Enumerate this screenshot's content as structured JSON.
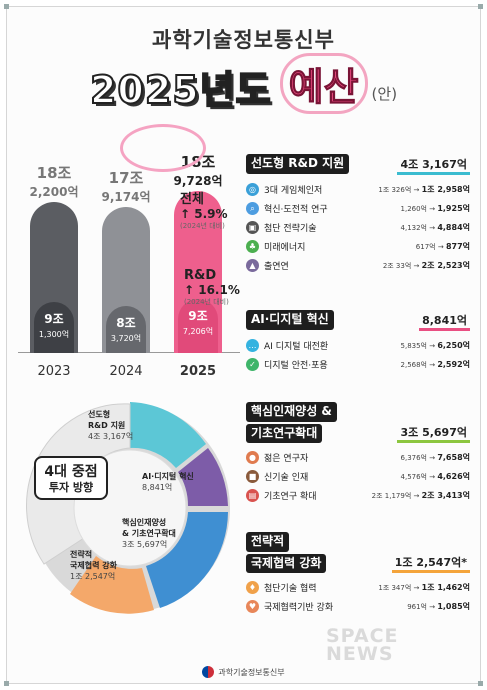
{
  "header": {
    "ministry": "과학기술정보통신부",
    "year_title": "2025년도",
    "budget": "예산",
    "draft": "(안)"
  },
  "chart_data": {
    "type": "bar",
    "categories": [
      "2023",
      "2024",
      "2025"
    ],
    "series": [
      {
        "values": [
          18.22,
          17.9174,
          18.9728
        ]
      },
      {
        "values": [
          9.13,
          8.372,
          9.7206
        ]
      }
    ],
    "ylim": [
      0,
      20
    ],
    "top_labels": [
      {
        "a": "18조",
        "b": "2,200억"
      },
      {
        "a": "17조",
        "b": "9,174억"
      },
      {
        "a": "18조",
        "b": "9,728억"
      }
    ],
    "inner_labels": [
      {
        "a": "9조",
        "b": "1,300억"
      },
      {
        "a": "8조",
        "b": "3,720억"
      },
      {
        "a": "9조",
        "b": "7,206억"
      }
    ],
    "colors": [
      "#5b5d62",
      "#8f9196",
      "#ee5f8d"
    ],
    "inner_colors": [
      "#3e4045",
      "#66686d",
      "#e14a7a"
    ]
  },
  "growth": {
    "total_label": "전체",
    "total_value": "5.9%",
    "total_cmp": "(2024년 대비)",
    "rd_label": "R&D",
    "rd_value": "16.1%",
    "rd_cmp": "(2024년 대비)"
  },
  "donut": {
    "center_line1": "4대 중점",
    "center_line2": "투자 방향",
    "segments": [
      {
        "name1": "선도형",
        "name2": "R&D 지원",
        "amount": "4조 3,167억",
        "color": "#5cc7d6"
      },
      {
        "name1": "AI·디지털 혁신",
        "name2": "",
        "amount": "8,841억",
        "color": "#7d5ca8"
      },
      {
        "name1": "핵심인재양성",
        "name2": "& 기초연구확대",
        "amount": "3조 5,697억",
        "color": "#3f8fd2"
      },
      {
        "name1": "전략적",
        "name2": "국제협력 강화",
        "amount": "1조 2,547억",
        "color": "#f4a86a"
      }
    ]
  },
  "sections": [
    {
      "title1": "선도형 R&D 지원",
      "title2": "",
      "total": "4조 3,167억",
      "items": [
        {
          "icon": "orbit-icon",
          "color": "#3aa0d8",
          "glyph": "◎",
          "name": "3대 게임체인저",
          "from": "1조 326억",
          "to": "1조 2,958억"
        },
        {
          "icon": "search-icon",
          "color": "#4d9de0",
          "glyph": "⌕",
          "name": "혁신·도전적 연구",
          "from": "1,260억",
          "to": "1,925억"
        },
        {
          "icon": "chip-icon",
          "color": "#555",
          "glyph": "▣",
          "name": "첨단 전략기술",
          "from": "4,132억",
          "to": "4,884억"
        },
        {
          "icon": "plant-icon",
          "color": "#4caf50",
          "glyph": "♣",
          "name": "미래에너지",
          "from": "617억",
          "to": "877억"
        },
        {
          "icon": "institute-icon",
          "color": "#7a6a9c",
          "glyph": "▲",
          "name": "출연연",
          "from": "2조 33억",
          "to": "2조 2,523억"
        }
      ]
    },
    {
      "title1": "AI·디지털 혁신",
      "title2": "",
      "total": "8,841억",
      "items": [
        {
          "icon": "chat-icon",
          "color": "#35b3e0",
          "glyph": "…",
          "name": "AI 디지털 대전환",
          "from": "5,835억",
          "to": "6,250억"
        },
        {
          "icon": "shield-icon",
          "color": "#3fb56a",
          "glyph": "✓",
          "name": "디지털 안전·포용",
          "from": "2,568억",
          "to": "2,592억"
        }
      ]
    },
    {
      "title1": "핵심인재양성 &",
      "title2": "기초연구확대",
      "total": "3조 5,697억",
      "items": [
        {
          "icon": "researcher-icon",
          "color": "#e07b4f",
          "glyph": "●",
          "name": "젊은 연구자",
          "from": "6,376억",
          "to": "7,658억"
        },
        {
          "icon": "briefcase-icon",
          "color": "#8a5a3c",
          "glyph": "■",
          "name": "신기술 인재",
          "from": "4,576억",
          "to": "4,626억"
        },
        {
          "icon": "clipboard-icon",
          "color": "#d9534f",
          "glyph": "▤",
          "name": "기초연구 확대",
          "from": "2조 1,179억",
          "to": "2조 3,413억"
        }
      ]
    },
    {
      "title1": "전략적",
      "title2": "국제협력 강화",
      "total": "1조 2,547억*",
      "items": [
        {
          "icon": "people-icon",
          "color": "#f0a14a",
          "glyph": "♦",
          "name": "첨단기술 협력",
          "from": "1조 347억",
          "to": "1조 1,462억"
        },
        {
          "icon": "handshake-icon",
          "color": "#e8875a",
          "glyph": "♥",
          "name": "국제협력기반 강화",
          "from": "961억",
          "to": "1,085억"
        }
      ]
    }
  ],
  "footer": {
    "ministry": "과학기술정보통신부"
  },
  "watermark": {
    "line1": "SPACE",
    "line2": "NEWS"
  }
}
